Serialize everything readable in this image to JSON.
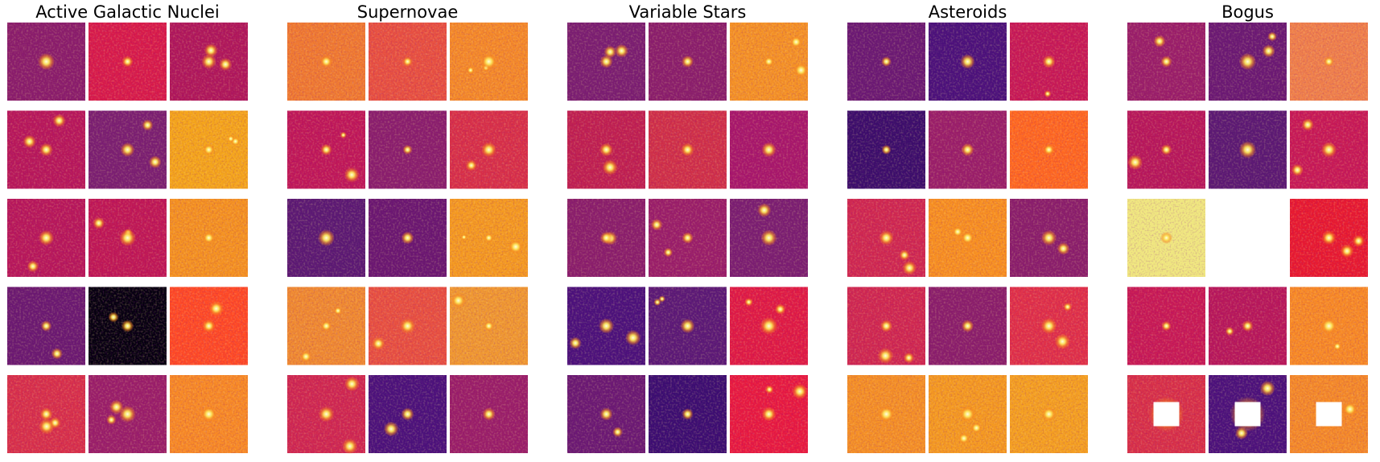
{
  "panels": [
    {
      "title": "Active Galactic Nuclei"
    },
    {
      "title": "Supernovae"
    },
    {
      "title": "Variable Stars"
    },
    {
      "title": "Asteroids"
    },
    {
      "title": "Bogus"
    }
  ]
}
